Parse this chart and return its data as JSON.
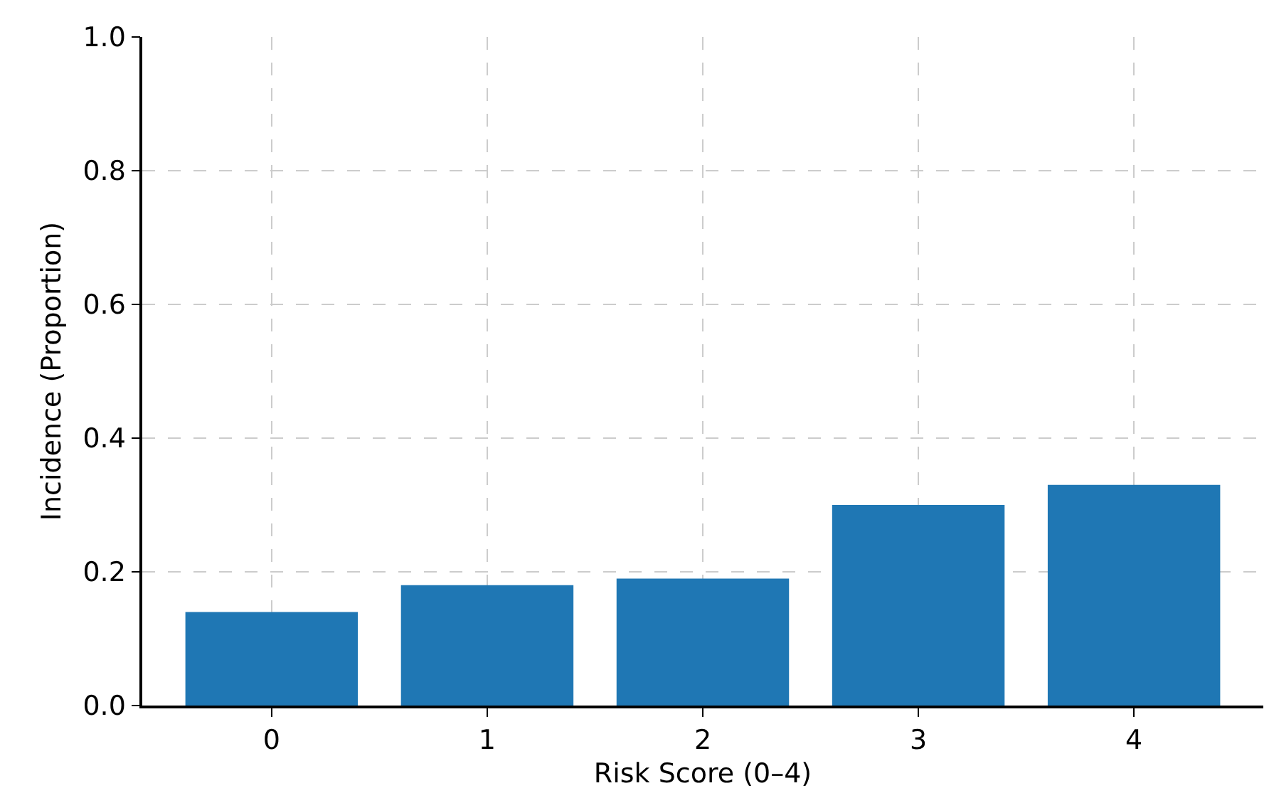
{
  "chart_data": {
    "type": "bar",
    "xlabel": "Risk Score (0–4)",
    "ylabel": "Incidence (Proportion)",
    "categories": [
      "0",
      "1",
      "2",
      "3",
      "4"
    ],
    "values": [
      0.14,
      0.18,
      0.19,
      0.3,
      0.33
    ],
    "color": "#1f77b4",
    "ylim": [
      0,
      1
    ],
    "yticks": [
      {
        "value": 0,
        "label": "0.0"
      },
      {
        "value": 0.2,
        "label": "0.2"
      },
      {
        "value": 0.4,
        "label": "0.4"
      },
      {
        "value": 0.6,
        "label": "0.6"
      },
      {
        "value": 0.8,
        "label": "0.8"
      },
      {
        "value": 1,
        "label": "1.0"
      }
    ],
    "grid": true
  }
}
